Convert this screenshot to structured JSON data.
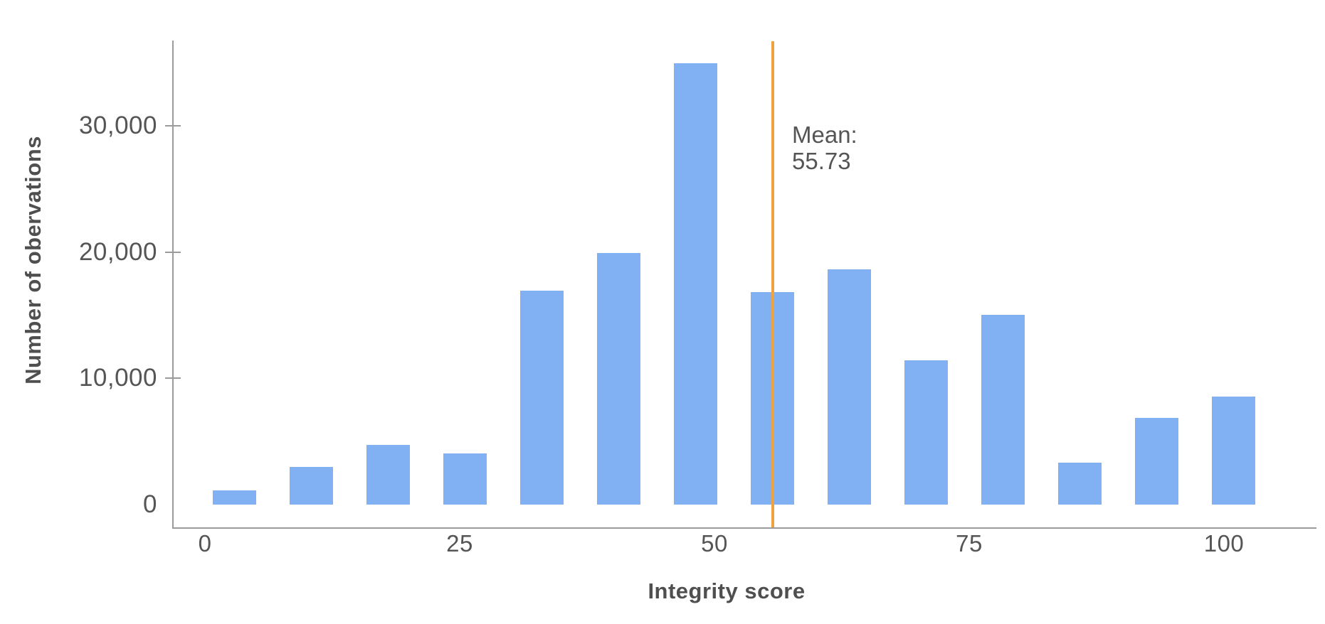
{
  "figure": {
    "y_axis": {
      "title": "Number of obervations",
      "ticks": [
        {
          "label": "30,000",
          "value": 30000,
          "tick_mark": true
        },
        {
          "label": "20,000",
          "value": 20000,
          "tick_mark": true
        },
        {
          "label": "10,000",
          "value": 10000,
          "tick_mark": true
        },
        {
          "label": "0",
          "value": 0,
          "tick_mark": false
        }
      ]
    },
    "x_axis": {
      "title": "Integrity score",
      "ticks": [
        {
          "label": "0",
          "value": 0
        },
        {
          "label": "25",
          "value": 25
        },
        {
          "label": "50",
          "value": 50
        },
        {
          "label": "75",
          "value": 75
        },
        {
          "label": "100",
          "value": 100
        }
      ]
    },
    "annotation": {
      "line1": "Mean:",
      "line2": "55.73"
    },
    "colors": {
      "bar": "#81b1f3",
      "mean_line": "#efa240",
      "axis": "#9b9b9b",
      "title_text": "#4f4f4f",
      "tick_text": "#555555",
      "background": "#ffffff"
    }
  },
  "chart_data": {
    "type": "bar",
    "subtype": "histogram",
    "title": "",
    "xlabel": "Integrity score",
    "ylabel": "Number of obervations",
    "x": [
      2.9,
      10.44,
      17.98,
      25.52,
      33.06,
      40.6,
      48.14,
      55.68,
      63.22,
      70.76,
      78.3,
      85.84,
      93.38,
      100.92
    ],
    "values": [
      1130,
      2990,
      4750,
      4070,
      16950,
      19940,
      34970,
      16840,
      18640,
      11410,
      15030,
      3330,
      6890,
      8530
    ],
    "bin_width": 7.54,
    "mean": 55.73,
    "mean_annotation": "Mean: 55.73",
    "xlim": [
      -3.1,
      109.1
    ],
    "ylim": [
      0,
      36800
    ],
    "x_ticks": [
      0,
      25,
      50,
      75,
      100
    ],
    "y_ticks": [
      0,
      10000,
      20000,
      30000
    ],
    "grid": false,
    "legend": false
  }
}
